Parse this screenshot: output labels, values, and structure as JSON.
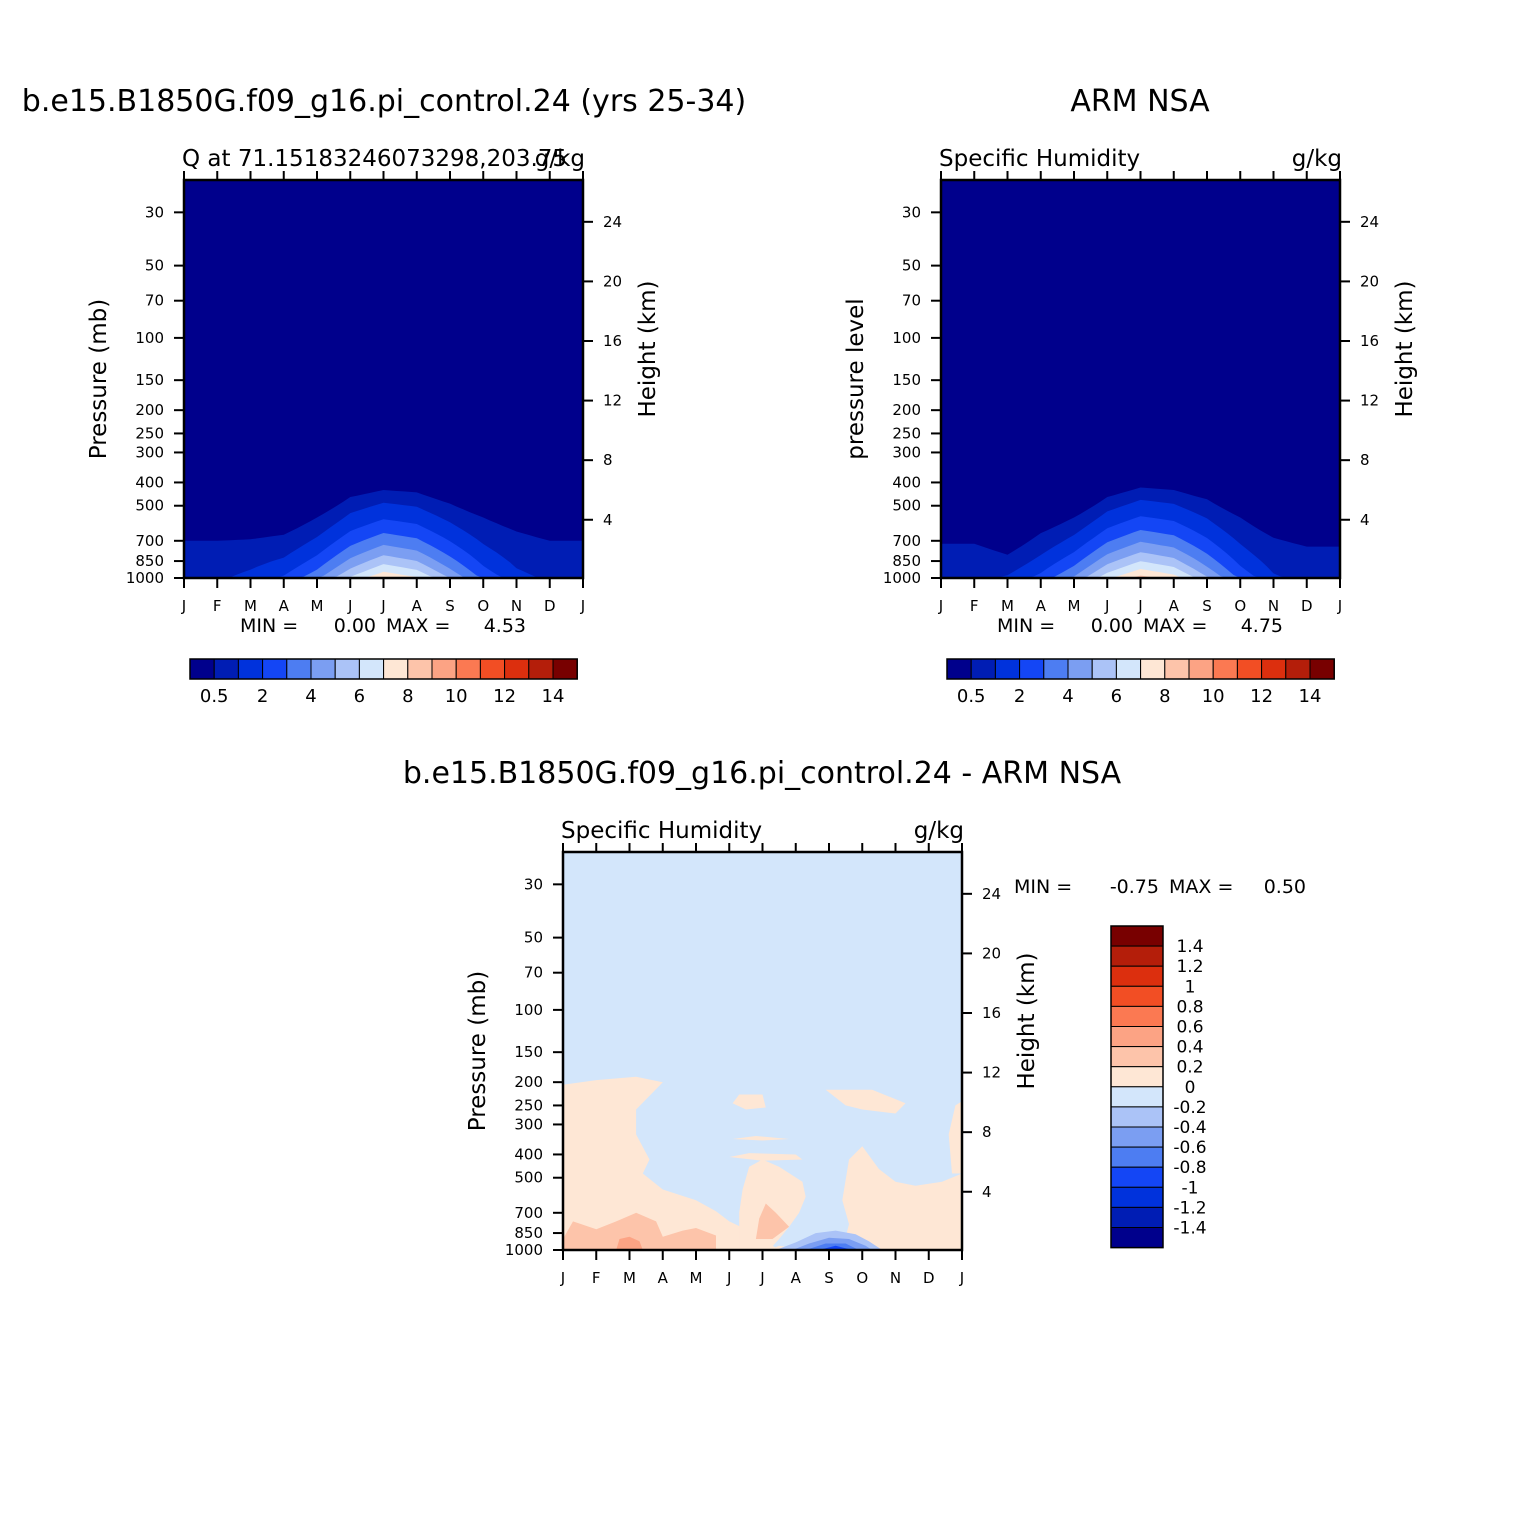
{
  "chart_data": [
    {
      "type": "heatmap",
      "title": "b.e15.B1850G.f09_g16.pi_control.24 (yrs 25-34)",
      "subtitle_left": "Q at 71.15183246073298,203.75",
      "subtitle_right": "g/kg",
      "ylabel_left": "Pressure (mb)",
      "ylabel_right": "Height (km)",
      "x_ticks": [
        "J",
        "F",
        "M",
        "A",
        "M",
        "J",
        "J",
        "A",
        "S",
        "O",
        "N",
        "D",
        "J"
      ],
      "y_ticks": [
        "30",
        "50",
        "70",
        "100",
        "150",
        "200",
        "250",
        "300",
        "400",
        "500",
        "700",
        "850",
        "1000"
      ],
      "y_ticks_right": [
        "24",
        "20",
        "16",
        "12",
        "8",
        "4"
      ],
      "ylim": [
        1000,
        22
      ],
      "stats": {
        "min_label": "MIN =",
        "min": "0.00",
        "max_label": "MAX =",
        "max": "4.53"
      },
      "colorbar": {
        "orientation": "horizontal",
        "labels": [
          "0.5",
          "2",
          "4",
          "6",
          "8",
          "10",
          "12",
          "14"
        ],
        "colors": [
          "#00008c",
          "#001db4",
          "#0032dc",
          "#1446f5",
          "#4d7df2",
          "#7b9ef2",
          "#abc3f7",
          "#d3e6fb",
          "#fee7d5",
          "#fdc4aa",
          "#fca384",
          "#fb7952",
          "#f24e24",
          "#dc2f0e",
          "#b41e0a",
          "#780000"
        ]
      },
      "profile": {
        "months": [
          "J",
          "F",
          "M",
          "A",
          "M",
          "J",
          "J",
          "A",
          "S",
          "O",
          "N",
          "D",
          "J"
        ],
        "level1_top_mb": [
          700,
          700,
          690,
          660,
          560,
          460,
          430,
          440,
          490,
          560,
          640,
          700,
          700
        ],
        "surface_max": [
          0.8,
          0.9,
          1.2,
          1.6,
          2.4,
          3.6,
          4.53,
          4.1,
          3.0,
          1.9,
          1.2,
          0.9,
          0.8
        ]
      }
    },
    {
      "type": "heatmap",
      "title": "ARM NSA",
      "subtitle_left": "Specific Humidity",
      "subtitle_right": "g/kg",
      "ylabel_left": "pressure level",
      "ylabel_right": "Height (km)",
      "x_ticks": [
        "J",
        "F",
        "M",
        "A",
        "M",
        "J",
        "J",
        "A",
        "S",
        "O",
        "N",
        "D",
        "J"
      ],
      "y_ticks": [
        "30",
        "50",
        "70",
        "100",
        "150",
        "200",
        "250",
        "300",
        "400",
        "500",
        "700",
        "850",
        "1000"
      ],
      "y_ticks_right": [
        "24",
        "20",
        "16",
        "12",
        "8",
        "4"
      ],
      "ylim": [
        1000,
        22
      ],
      "stats": {
        "min_label": "MIN =",
        "min": "0.00",
        "max_label": "MAX =",
        "max": "4.75"
      },
      "colorbar": {
        "orientation": "horizontal",
        "labels": [
          "0.5",
          "2",
          "4",
          "6",
          "8",
          "10",
          "12",
          "14"
        ],
        "colors": [
          "#00008c",
          "#001db4",
          "#0032dc",
          "#1446f5",
          "#4d7df2",
          "#7b9ef2",
          "#abc3f7",
          "#d3e6fb",
          "#fee7d5",
          "#fdc4aa",
          "#fca384",
          "#fb7952",
          "#f24e24",
          "#dc2f0e",
          "#b41e0a",
          "#780000"
        ]
      },
      "profile": {
        "months": [
          "J",
          "F",
          "M",
          "A",
          "M",
          "J",
          "J",
          "A",
          "S",
          "O",
          "N",
          "D",
          "J"
        ],
        "level1_top_mb": [
          720,
          720,
          800,
          650,
          560,
          460,
          420,
          430,
          470,
          560,
          680,
          740,
          740
        ],
        "surface_max": [
          0.8,
          0.8,
          1.1,
          1.7,
          2.6,
          3.9,
          4.75,
          4.3,
          3.1,
          1.9,
          1.1,
          0.8,
          0.8
        ]
      }
    },
    {
      "type": "heatmap",
      "title": "b.e15.B1850G.f09_g16.pi_control.24 - ARM NSA",
      "subtitle_left": "Specific Humidity",
      "subtitle_right": "g/kg",
      "ylabel_left": "Pressure (mb)",
      "ylabel_right": "Height (km)",
      "x_ticks": [
        "J",
        "F",
        "M",
        "A",
        "M",
        "J",
        "J",
        "A",
        "S",
        "O",
        "N",
        "D",
        "J"
      ],
      "y_ticks": [
        "30",
        "50",
        "70",
        "100",
        "150",
        "200",
        "250",
        "300",
        "400",
        "500",
        "700",
        "850",
        "1000"
      ],
      "y_ticks_right": [
        "24",
        "20",
        "16",
        "12",
        "8",
        "4"
      ],
      "ylim": [
        1000,
        22
      ],
      "stats": {
        "min_label": "MIN =",
        "min": "-0.75",
        "max_label": "MAX =",
        "max": "0.50"
      },
      "colorbar": {
        "orientation": "vertical",
        "labels": [
          "1.4",
          "1.2",
          "1",
          "0.8",
          "0.6",
          "0.4",
          "0.2",
          "0",
          "-0.2",
          "-0.4",
          "-0.6",
          "-0.8",
          "-1",
          "-1.2",
          "-1.4"
        ],
        "colors": [
          "#780000",
          "#b41e0a",
          "#dc2f0e",
          "#f24e24",
          "#fb7952",
          "#fca384",
          "#fdc4aa",
          "#fee7d5",
          "#d3e6fb",
          "#abc3f7",
          "#7b9ef2",
          "#4d7df2",
          "#1446f5",
          "#0032dc",
          "#001db4",
          "#00008c"
        ]
      },
      "difference": {
        "background": "#d3e6fb",
        "positive_low": "#fee7d5",
        "positive_mid": "#fdc4aa",
        "positive_high": "#fca384",
        "negative_1": "#abc3f7",
        "negative_2": "#7b9ef2",
        "negative_3": "#4d7df2",
        "negative_4": "#1446f5"
      }
    }
  ]
}
